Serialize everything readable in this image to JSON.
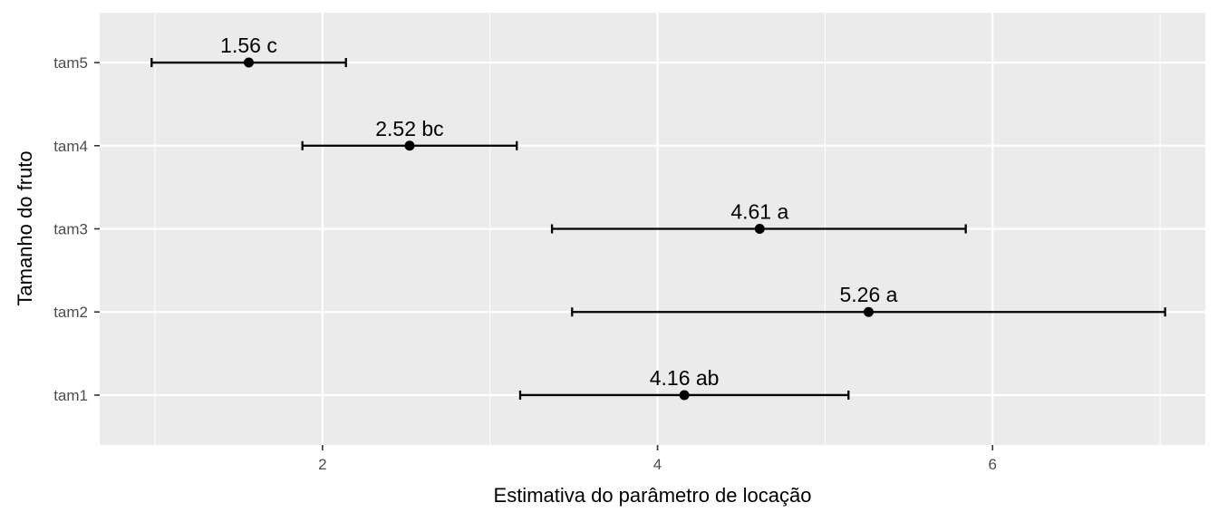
{
  "chart_data": {
    "type": "errorbar",
    "xlabel": "Estimativa do parâmetro de locação",
    "ylabel": "Tamanho do fruto",
    "xlim": [
      0.67,
      7.27
    ],
    "x_ticks": [
      2,
      4,
      6
    ],
    "x_tick_labels": [
      "2",
      "4",
      "6"
    ],
    "grid": true,
    "categories": [
      "tam1",
      "tam2",
      "tam3",
      "tam4",
      "tam5"
    ],
    "points": [
      {
        "category": "tam1",
        "estimate": 4.16,
        "lower": 3.18,
        "upper": 5.14,
        "label": "4.16 ab"
      },
      {
        "category": "tam2",
        "estimate": 5.26,
        "lower": 3.49,
        "upper": 7.03,
        "label": "5.26 a"
      },
      {
        "category": "tam3",
        "estimate": 4.61,
        "lower": 3.37,
        "upper": 5.84,
        "label": "4.61 a"
      },
      {
        "category": "tam4",
        "estimate": 2.52,
        "lower": 1.88,
        "upper": 3.16,
        "label": "2.52 bc"
      },
      {
        "category": "tam5",
        "estimate": 1.56,
        "lower": 0.98,
        "upper": 2.14,
        "label": "1.56 c"
      }
    ]
  },
  "colors": {
    "panel": "#ebebeb",
    "grid": "#ffffff",
    "mark": "#000000",
    "tick_text": "#4d4d4d"
  }
}
